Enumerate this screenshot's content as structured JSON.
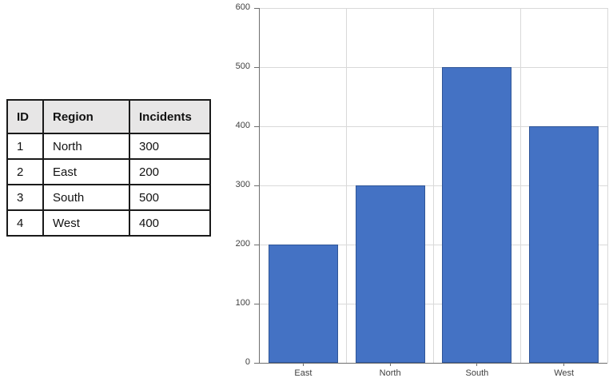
{
  "table": {
    "headers": [
      "ID",
      "Region",
      "Incidents"
    ],
    "rows": [
      {
        "id": "1",
        "region": "North",
        "incidents": "300"
      },
      {
        "id": "2",
        "region": "East",
        "incidents": "200"
      },
      {
        "id": "3",
        "region": "South",
        "incidents": "500"
      },
      {
        "id": "4",
        "region": "West",
        "incidents": "400"
      }
    ]
  },
  "chart_data": {
    "type": "bar",
    "categories": [
      "East",
      "North",
      "South",
      "West"
    ],
    "values": [
      200,
      300,
      500,
      400
    ],
    "title": "",
    "xlabel": "",
    "ylabel": "",
    "ylim": [
      0,
      600
    ],
    "ytick_step": 100,
    "grid": true,
    "legend": "none",
    "bar_color": "#4472C4",
    "bar_border_color": "#2F5597",
    "gridline_color": "#D9D9D9",
    "axis_color": "#6E6E6E",
    "label_color": "#404040"
  },
  "colors": {
    "page_background": "#FFFFFF",
    "table_header_background": "#E7E6E6",
    "table_border": "#1A1A1A"
  }
}
